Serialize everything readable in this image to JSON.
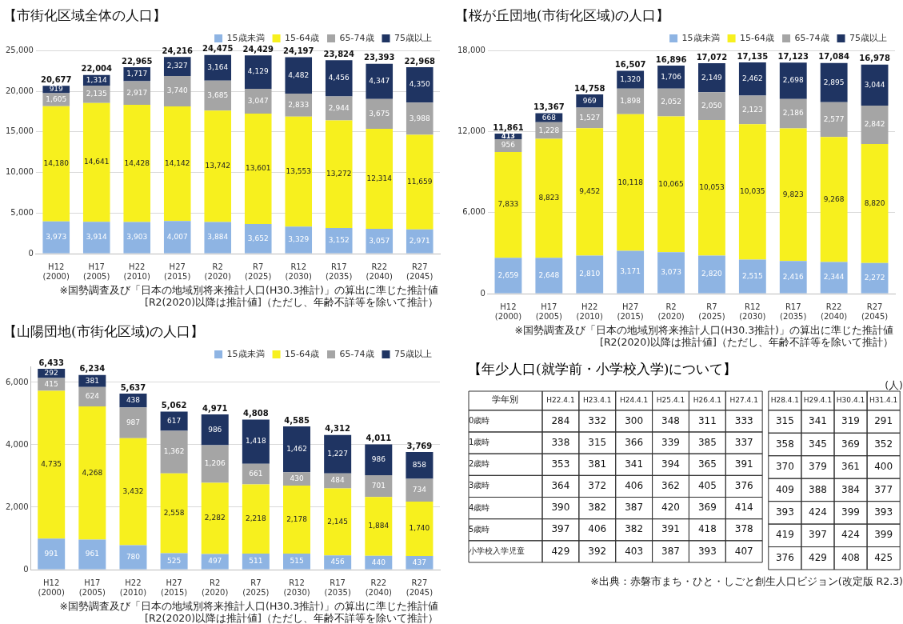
{
  "chart_data": [
    {
      "type": "bar",
      "title": "【市街化区域全体の人口】",
      "stacked": true,
      "grid": "y",
      "legend": "top right",
      "categories": [
        "H12\n(2000)",
        "H17\n(2005)",
        "H22\n(2010)",
        "H27\n(2015)",
        "R2\n(2020)",
        "R7\n(2025)",
        "R12\n(2030)",
        "R17\n(2035)",
        "R22\n(2040)",
        "R27\n(2045)"
      ],
      "ylim": [
        0,
        25000
      ],
      "yticks": [
        {
          "value": 0,
          "label": "0"
        },
        {
          "value": 5000,
          "label": "5,000"
        },
        {
          "value": 10000,
          "label": "10,000"
        },
        {
          "value": 15000,
          "label": "15,000"
        },
        {
          "value": 20000,
          "label": "20,000"
        },
        {
          "value": 25000,
          "label": "25,000"
        }
      ],
      "series": [
        {
          "name": "15歳未満",
          "color": "#8eb4e3",
          "values": [
            3973,
            3914,
            3903,
            4007,
            3884,
            3652,
            3329,
            3152,
            3057,
            2971
          ],
          "value_labels": [
            "3,973",
            "3,914",
            "3,903",
            "4,007",
            "3,884",
            "3,652",
            "3,329",
            "3,152",
            "3,057",
            "2,971"
          ]
        },
        {
          "name": "15-64歳",
          "color": "#f7f01e",
          "values": [
            14180,
            14641,
            14428,
            14142,
            13742,
            13601,
            13553,
            13272,
            12314,
            11659
          ],
          "value_labels": [
            "14,180",
            "14,641",
            "14,428",
            "14,142",
            "13,742",
            "13,601",
            "13,553",
            "13,272",
            "12,314",
            "11,659"
          ]
        },
        {
          "name": "65-74歳",
          "color": "#a5a5a5",
          "values": [
            1605,
            2135,
            2917,
            3740,
            3685,
            3047,
            2833,
            2944,
            3675,
            3988
          ],
          "value_labels": [
            "1,605",
            "2,135",
            "2,917",
            "3,740",
            "3,685",
            "3,047",
            "2,833",
            "2,944",
            "3,675",
            "3,988"
          ]
        },
        {
          "name": "75歳以上",
          "color": "#1f3462",
          "values": [
            919,
            1314,
            1717,
            2327,
            3164,
            4129,
            4482,
            4456,
            4347,
            4350
          ],
          "value_labels": [
            "919",
            "1,314",
            "1,717",
            "2,327",
            "3,164",
            "4,129",
            "4,482",
            "4,456",
            "4,347",
            "4,350"
          ]
        }
      ],
      "totals": [
        "20,677",
        "22,004",
        "22,965",
        "24,216",
        "24,475",
        "24,429",
        "24,197",
        "23,824",
        "23,393",
        "22,968"
      ],
      "annotations": [
        "※国勢調査及び「日本の地域別将来推計人口(H30.3推計)」の算出に準じた推計値",
        "[R2(2020)以降は推計値]（ただし、年齢不詳等を除いて推計）"
      ]
    },
    {
      "type": "bar",
      "title": "【桜が丘団地(市街化区域)の人口】",
      "stacked": true,
      "grid": "y",
      "legend": "top right",
      "categories": [
        "H12\n(2000)",
        "H17\n(2005)",
        "H22\n(2010)",
        "H27\n(2015)",
        "R2\n(2020)",
        "R7\n(2025)",
        "R12\n(2030)",
        "R17\n(2035)",
        "R22\n(2040)",
        "R27\n(2045)"
      ],
      "ylim": [
        0,
        18000
      ],
      "yticks": [
        {
          "value": 0,
          "label": "0"
        },
        {
          "value": 6000,
          "label": "6,000"
        },
        {
          "value": 12000,
          "label": "12,000"
        },
        {
          "value": 18000,
          "label": "18,000"
        }
      ],
      "series": [
        {
          "name": "15歳未満",
          "color": "#8eb4e3",
          "values": [
            2659,
            2648,
            2810,
            3171,
            3073,
            2820,
            2515,
            2416,
            2344,
            2272
          ],
          "value_labels": [
            "2,659",
            "2,648",
            "2,810",
            "3,171",
            "3,073",
            "2,820",
            "2,515",
            "2,416",
            "2,344",
            "2,272"
          ]
        },
        {
          "name": "15-64歳",
          "color": "#f7f01e",
          "values": [
            7833,
            8823,
            9452,
            10118,
            10065,
            10053,
            10035,
            9823,
            9268,
            8820
          ],
          "value_labels": [
            "7,833",
            "8,823",
            "9,452",
            "10,118",
            "10,065",
            "10,053",
            "10,035",
            "9,823",
            "9,268",
            "8,820"
          ]
        },
        {
          "name": "65-74歳",
          "color": "#a5a5a5",
          "values": [
            956,
            1228,
            1527,
            1898,
            2052,
            2050,
            2123,
            2186,
            2577,
            2842
          ],
          "value_labels": [
            "956",
            "1,228",
            "1,527",
            "1,898",
            "2,052",
            "2,050",
            "2,123",
            "2,186",
            "2,577",
            "2,842"
          ]
        },
        {
          "name": "75歳以上",
          "color": "#1f3462",
          "values": [
            413,
            668,
            969,
            1320,
            1706,
            2149,
            2462,
            2698,
            2895,
            3044
          ],
          "value_labels": [
            "413",
            "668",
            "969",
            "1,320",
            "1,706",
            "2,149",
            "2,462",
            "2,698",
            "2,895",
            "3,044"
          ]
        }
      ],
      "totals": [
        "11,861",
        "13,367",
        "14,758",
        "16,507",
        "16,896",
        "17,072",
        "17,135",
        "17,123",
        "17,084",
        "16,978"
      ],
      "annotations": [
        "※国勢調査及び「日本の地域別将来推計人口(H30.3推計)」の算出に準じた推計値",
        "[R2(2020)以降は推計値]（ただし、年齢不詳等を除いて推計）"
      ]
    },
    {
      "type": "bar",
      "title": "【山陽団地(市街化区域)の人口】",
      "stacked": true,
      "grid": "y",
      "legend": "top right",
      "categories": [
        "H12\n(2000)",
        "H17\n(2005)",
        "H22\n(2010)",
        "H27\n(2015)",
        "R2\n(2020)",
        "R7\n(2025)",
        "R12\n(2030)",
        "R17\n(2035)",
        "R22\n(2040)",
        "R27\n(2045)"
      ],
      "ylim": [
        0,
        6500
      ],
      "yticks": [
        {
          "value": 0,
          "label": "0"
        },
        {
          "value": 2000,
          "label": "2,000"
        },
        {
          "value": 4000,
          "label": "4,000"
        },
        {
          "value": 6000,
          "label": "6,000"
        }
      ],
      "series": [
        {
          "name": "15歳未満",
          "color": "#8eb4e3",
          "values": [
            991,
            961,
            780,
            525,
            497,
            511,
            515,
            456,
            440,
            437
          ],
          "value_labels": [
            "991",
            "961",
            "780",
            "525",
            "497",
            "511",
            "515",
            "456",
            "440",
            "437"
          ]
        },
        {
          "name": "15-64歳",
          "color": "#f7f01e",
          "values": [
            4735,
            4268,
            3432,
            2558,
            2282,
            2218,
            2178,
            2145,
            1884,
            1740
          ],
          "value_labels": [
            "4,735",
            "4,268",
            "3,432",
            "2,558",
            "2,282",
            "2,218",
            "2,178",
            "2,145",
            "1,884",
            "1,740"
          ]
        },
        {
          "name": "65-74歳",
          "color": "#a5a5a5",
          "values": [
            415,
            624,
            987,
            1362,
            1206,
            661,
            430,
            484,
            701,
            734
          ],
          "value_labels": [
            "415",
            "624",
            "987",
            "1,362",
            "1,206",
            "661",
            "430",
            "484",
            "701",
            "734"
          ]
        },
        {
          "name": "75歳以上",
          "color": "#1f3462",
          "values": [
            292,
            381,
            438,
            617,
            986,
            1418,
            1462,
            1227,
            986,
            858
          ],
          "value_labels": [
            "292",
            "381",
            "438",
            "617",
            "986",
            "1,418",
            "1,462",
            "1,227",
            "986",
            "858"
          ]
        }
      ],
      "totals": [
        "6,433",
        "6,234",
        "5,637",
        "5,062",
        "4,971",
        "4,808",
        "4,585",
        "4,312",
        "4,011",
        "3,769"
      ],
      "annotations": [
        "※国勢調査及び「日本の地域別将来推計人口(H30.3推計)」の算出に準じた推計値",
        "[R2(2020)以降は推計値]（ただし、年齢不詳等を除いて推計）"
      ]
    },
    {
      "type": "heatmap",
      "title": "【年少人口(就学前・小学校入学)について】",
      "data_labels": true,
      "categories": [
        "H22.4.1",
        "H23.4.1",
        "H24.4.1",
        "H25.4.1",
        "H26.4.1",
        "H27.4.1"
      ],
      "y_categories": [
        "0歳時",
        "1歳時",
        "2歳時",
        "3歳時",
        "4歳時",
        "5歳時",
        "小学校入学児童"
      ],
      "cells": [
        [
          284,
          332,
          300,
          348,
          311,
          333
        ],
        [
          338,
          315,
          366,
          339,
          385,
          337
        ],
        [
          353,
          381,
          341,
          394,
          365,
          391
        ],
        [
          364,
          372,
          406,
          362,
          405,
          376
        ],
        [
          390,
          382,
          387,
          420,
          369,
          414
        ],
        [
          397,
          406,
          382,
          391,
          418,
          378
        ],
        [
          429,
          392,
          403,
          387,
          393,
          407
        ]
      ],
      "annotations": [
        "学年別"
      ]
    },
    {
      "type": "heatmap",
      "tick_labels": "x",
      "data_labels": true,
      "categories": [
        "H28.4.1",
        "H29.4.1",
        "H30.4.1",
        "H31.4.1"
      ],
      "y_categories": [
        null,
        null,
        null,
        null,
        null,
        null,
        null
      ],
      "cells": [
        [
          315,
          341,
          319,
          291
        ],
        [
          358,
          345,
          369,
          352
        ],
        [
          370,
          379,
          361,
          400
        ],
        [
          409,
          388,
          384,
          377
        ],
        [
          393,
          424,
          399,
          393
        ],
        [
          419,
          397,
          424,
          399
        ],
        [
          376,
          429,
          408,
          425
        ]
      ],
      "annotations": [
        "(人)",
        "※出典：赤磐市まち・ひと・しごと創生人口ビジョン(改定版 R2.3)"
      ]
    }
  ]
}
